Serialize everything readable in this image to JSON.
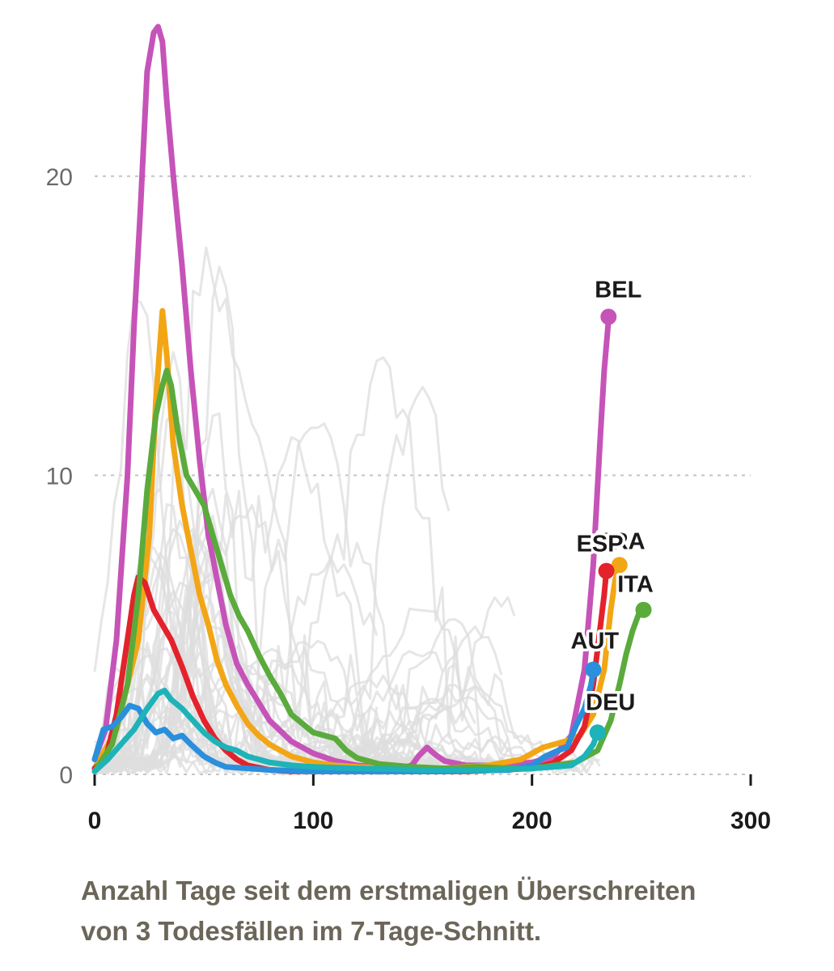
{
  "chart_data": {
    "type": "line",
    "xlabel": "Anzahl Tage seit dem erstmaligen Überschreiten von 3 Todesfällen im 7-Tage-Schnitt.",
    "xlim": [
      0,
      300
    ],
    "ylim": [
      0,
      25
    ],
    "x_ticks": [
      0,
      100,
      200,
      300
    ],
    "x_tick_labels": [
      "0",
      "100",
      "200",
      "300"
    ],
    "y_ticks": [
      0,
      10,
      20
    ],
    "y_tick_labels": [
      "0",
      "10",
      "20"
    ],
    "grid": "horizontal dotted",
    "highlighted_series": [
      {
        "name": "BEL",
        "color": "#c653b8",
        "label": "BEL",
        "points": [
          [
            0,
            0.5
          ],
          [
            5,
            1.5
          ],
          [
            10,
            4.5
          ],
          [
            15,
            10
          ],
          [
            18,
            15
          ],
          [
            21,
            19
          ],
          [
            24,
            23.5
          ],
          [
            27,
            24.8
          ],
          [
            29,
            25
          ],
          [
            31,
            24.5
          ],
          [
            33,
            22.5
          ],
          [
            36,
            20
          ],
          [
            40,
            17
          ],
          [
            44,
            13.5
          ],
          [
            48,
            10.5
          ],
          [
            52,
            8
          ],
          [
            56,
            6.5
          ],
          [
            60,
            5
          ],
          [
            65,
            3.7
          ],
          [
            70,
            3
          ],
          [
            75,
            2.4
          ],
          [
            80,
            1.8
          ],
          [
            90,
            1.1
          ],
          [
            100,
            0.7
          ],
          [
            110,
            0.45
          ],
          [
            120,
            0.3
          ],
          [
            130,
            0.25
          ],
          [
            140,
            0.2
          ],
          [
            145,
            0.3
          ],
          [
            148,
            0.6
          ],
          [
            152,
            0.9
          ],
          [
            156,
            0.65
          ],
          [
            160,
            0.45
          ],
          [
            170,
            0.3
          ],
          [
            185,
            0.3
          ],
          [
            200,
            0.4
          ],
          [
            210,
            0.6
          ],
          [
            218,
            1.3
          ],
          [
            224,
            3.5
          ],
          [
            228,
            7
          ],
          [
            231,
            11
          ],
          [
            233,
            13.5
          ],
          [
            235,
            15.2
          ]
        ],
        "end": [
          235,
          15.3
        ]
      },
      {
        "name": "FRA",
        "color": "#f2a615",
        "label": "FRA",
        "points": [
          [
            0,
            0.2
          ],
          [
            10,
            1.5
          ],
          [
            20,
            4.5
          ],
          [
            25,
            8
          ],
          [
            28,
            12.5
          ],
          [
            31,
            15.5
          ],
          [
            33,
            14
          ],
          [
            36,
            11
          ],
          [
            40,
            9
          ],
          [
            44,
            7.5
          ],
          [
            48,
            6
          ],
          [
            52,
            5
          ],
          [
            56,
            3.8
          ],
          [
            60,
            3
          ],
          [
            65,
            2.3
          ],
          [
            70,
            1.7
          ],
          [
            75,
            1.3
          ],
          [
            80,
            1
          ],
          [
            90,
            0.6
          ],
          [
            100,
            0.4
          ],
          [
            110,
            0.3
          ],
          [
            120,
            0.25
          ],
          [
            140,
            0.2
          ],
          [
            160,
            0.2
          ],
          [
            180,
            0.3
          ],
          [
            195,
            0.5
          ],
          [
            205,
            0.9
          ],
          [
            215,
            1.1
          ],
          [
            222,
            1.3
          ],
          [
            228,
            2
          ],
          [
            233,
            3.5
          ],
          [
            236,
            5.5
          ],
          [
            238,
            6.5
          ],
          [
            240,
            7
          ]
        ],
        "end": [
          240,
          7.0
        ]
      },
      {
        "name": "ESP",
        "color": "#e3222b",
        "label": "ESP",
        "points": [
          [
            0,
            0.2
          ],
          [
            5,
            0.5
          ],
          [
            10,
            2
          ],
          [
            14,
            4
          ],
          [
            18,
            6
          ],
          [
            20,
            6.6
          ],
          [
            23,
            6.4
          ],
          [
            27,
            5.5
          ],
          [
            31,
            5
          ],
          [
            35,
            4.5
          ],
          [
            40,
            3.6
          ],
          [
            45,
            2.6
          ],
          [
            50,
            1.8
          ],
          [
            55,
            1.2
          ],
          [
            60,
            0.8
          ],
          [
            65,
            0.5
          ],
          [
            70,
            0.3
          ],
          [
            80,
            0.15
          ],
          [
            90,
            0.1
          ],
          [
            110,
            0.1
          ],
          [
            140,
            0.1
          ],
          [
            170,
            0.1
          ],
          [
            200,
            0.2
          ],
          [
            210,
            0.4
          ],
          [
            218,
            0.8
          ],
          [
            224,
            1.6
          ],
          [
            228,
            3
          ],
          [
            231,
            4.8
          ],
          [
            233,
            6
          ],
          [
            234,
            6.8
          ]
        ],
        "end": [
          234,
          6.8
        ]
      },
      {
        "name": "ITA",
        "color": "#5aab3c",
        "label": "ITA",
        "points": [
          [
            0,
            0.1
          ],
          [
            8,
            1
          ],
          [
            15,
            3
          ],
          [
            20,
            6
          ],
          [
            24,
            9.5
          ],
          [
            28,
            12
          ],
          [
            31,
            13
          ],
          [
            33,
            13.5
          ],
          [
            35,
            13
          ],
          [
            38,
            11.5
          ],
          [
            42,
            10
          ],
          [
            46,
            9.5
          ],
          [
            50,
            9
          ],
          [
            54,
            8
          ],
          [
            58,
            7
          ],
          [
            62,
            6
          ],
          [
            66,
            5.3
          ],
          [
            70,
            4.8
          ],
          [
            75,
            4
          ],
          [
            80,
            3.3
          ],
          [
            85,
            2.7
          ],
          [
            90,
            2
          ],
          [
            100,
            1.4
          ],
          [
            110,
            1.2
          ],
          [
            115,
            0.8
          ],
          [
            120,
            0.55
          ],
          [
            130,
            0.35
          ],
          [
            145,
            0.25
          ],
          [
            160,
            0.2
          ],
          [
            175,
            0.25
          ],
          [
            190,
            0.2
          ],
          [
            205,
            0.25
          ],
          [
            220,
            0.4
          ],
          [
            230,
            0.8
          ],
          [
            236,
            1.8
          ],
          [
            240,
            3
          ],
          [
            243,
            4
          ],
          [
            246,
            4.8
          ],
          [
            249,
            5.4
          ],
          [
            251,
            5.5
          ]
        ],
        "end": [
          251,
          5.5
        ]
      },
      {
        "name": "AUT",
        "color": "#2a8fdc",
        "label": "AUT",
        "points": [
          [
            0,
            0.5
          ],
          [
            4,
            1.5
          ],
          [
            8,
            1.6
          ],
          [
            12,
            1.9
          ],
          [
            16,
            2.3
          ],
          [
            20,
            2.2
          ],
          [
            24,
            1.7
          ],
          [
            28,
            1.4
          ],
          [
            32,
            1.5
          ],
          [
            36,
            1.2
          ],
          [
            40,
            1.3
          ],
          [
            44,
            1
          ],
          [
            50,
            0.6
          ],
          [
            55,
            0.4
          ],
          [
            60,
            0.25
          ],
          [
            70,
            0.2
          ],
          [
            80,
            0.15
          ],
          [
            100,
            0.1
          ],
          [
            130,
            0.1
          ],
          [
            160,
            0.1
          ],
          [
            190,
            0.15
          ],
          [
            200,
            0.3
          ],
          [
            206,
            0.6
          ],
          [
            212,
            0.8
          ],
          [
            216,
            0.9
          ],
          [
            220,
            1.6
          ],
          [
            224,
            2.2
          ],
          [
            227,
            3
          ],
          [
            228,
            3.5
          ]
        ],
        "end": [
          228,
          3.5
        ]
      },
      {
        "name": "DEU",
        "color": "#1db3b8",
        "label": "DEU",
        "points": [
          [
            0,
            0.1
          ],
          [
            6,
            0.5
          ],
          [
            12,
            1
          ],
          [
            18,
            1.5
          ],
          [
            24,
            2.2
          ],
          [
            29,
            2.7
          ],
          [
            32,
            2.8
          ],
          [
            35,
            2.5
          ],
          [
            40,
            2.2
          ],
          [
            45,
            1.8
          ],
          [
            50,
            1.4
          ],
          [
            55,
            1.1
          ],
          [
            60,
            0.9
          ],
          [
            65,
            0.8
          ],
          [
            70,
            0.6
          ],
          [
            80,
            0.4
          ],
          [
            90,
            0.3
          ],
          [
            100,
            0.25
          ],
          [
            120,
            0.2
          ],
          [
            150,
            0.15
          ],
          [
            180,
            0.15
          ],
          [
            200,
            0.2
          ],
          [
            210,
            0.25
          ],
          [
            218,
            0.3
          ],
          [
            224,
            0.6
          ],
          [
            228,
            1
          ],
          [
            230,
            1.4
          ]
        ],
        "end": [
          230,
          1.4
        ]
      }
    ],
    "background_series_color": "#dddddd",
    "background_series_count": 44
  },
  "caption": {
    "line1": "Anzahl Tage seit dem erstmaligen Überschreiten",
    "line2": "von 3 Todesfällen im 7-Tage-Schnitt."
  }
}
